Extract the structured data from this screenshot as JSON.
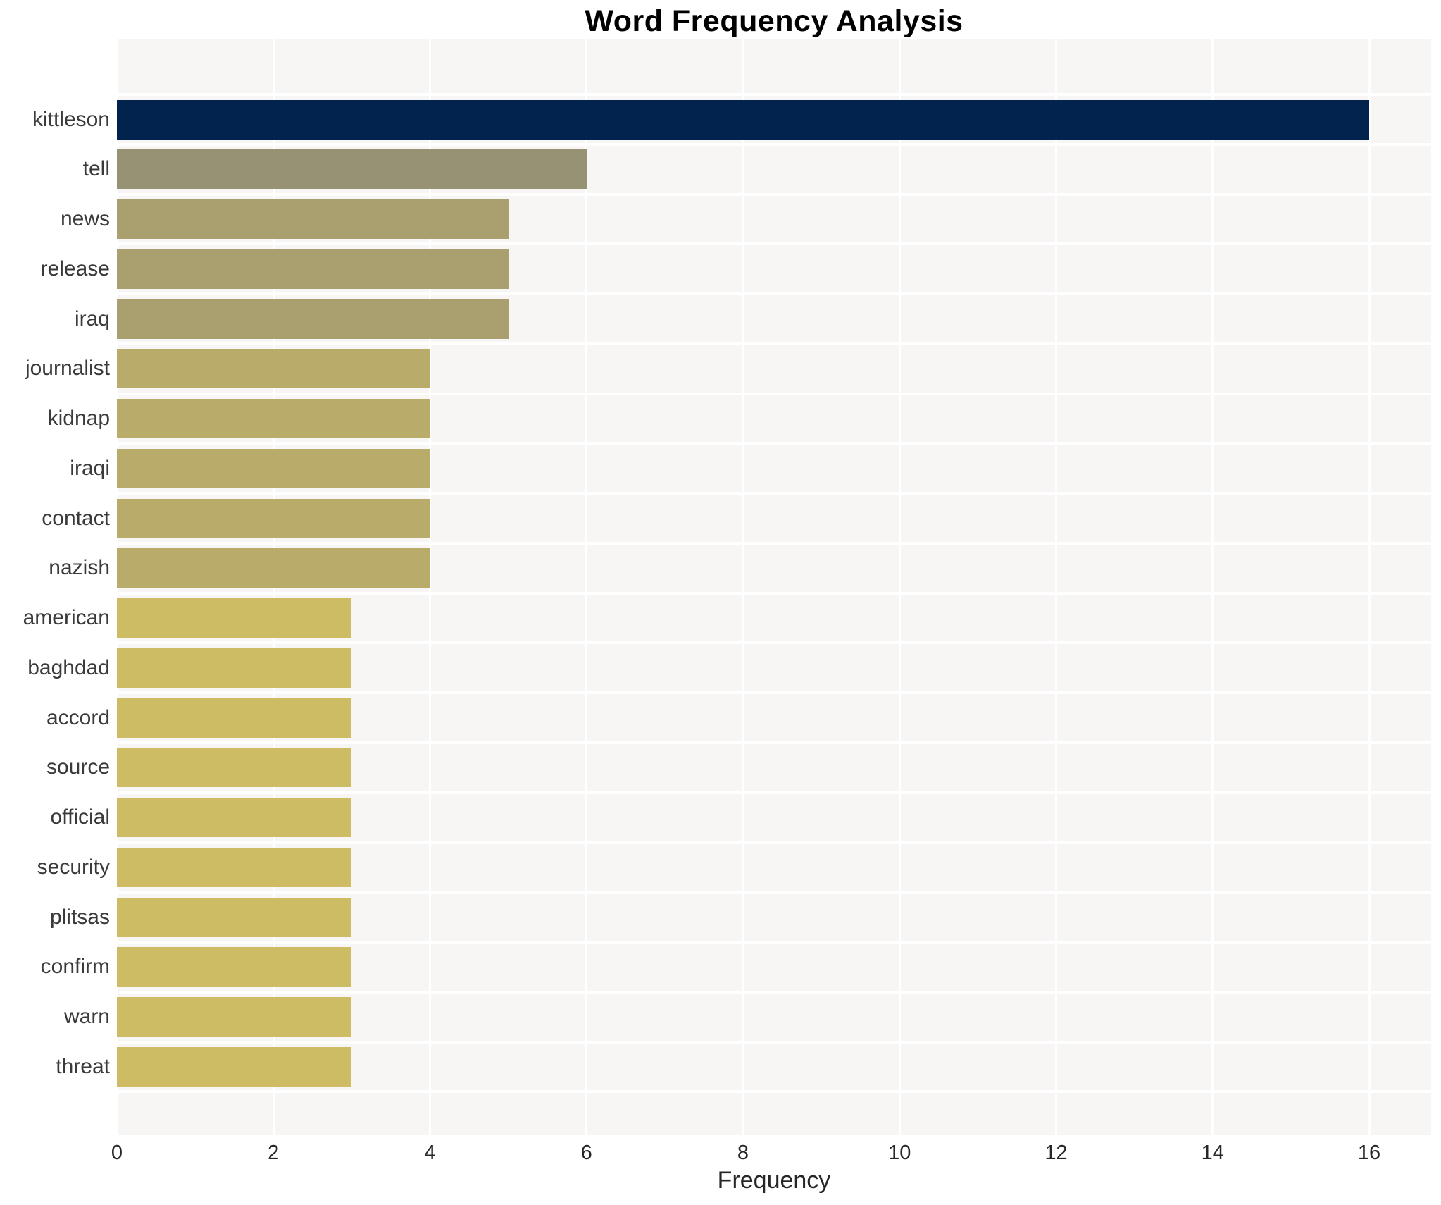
{
  "chart_data": {
    "type": "bar",
    "orientation": "horizontal",
    "title": "Word Frequency Analysis",
    "xlabel": "Frequency",
    "ylabel": "",
    "categories": [
      "kittleson",
      "tell",
      "news",
      "release",
      "iraq",
      "journalist",
      "kidnap",
      "iraqi",
      "contact",
      "nazish",
      "american",
      "baghdad",
      "accord",
      "source",
      "official",
      "security",
      "plitsas",
      "confirm",
      "warn",
      "threat"
    ],
    "values": [
      16,
      6,
      5,
      5,
      5,
      4,
      4,
      4,
      4,
      4,
      3,
      3,
      3,
      3,
      3,
      3,
      3,
      3,
      3,
      3
    ],
    "bar_colors": [
      "#02234d",
      "#989274",
      "#aaa06f",
      "#aaa06f",
      "#aaa06f",
      "#b9ac6a",
      "#b9ac6a",
      "#b9ac6a",
      "#b9ac6a",
      "#b9ac6a",
      "#cdbc63",
      "#cdbc63",
      "#cdbc63",
      "#cdbc63",
      "#cdbc63",
      "#cdbc63",
      "#cdbc63",
      "#cdbc63",
      "#cdbc63",
      "#cdbc63"
    ],
    "xlim": [
      0,
      16.8
    ],
    "xticks": [
      0,
      2,
      4,
      6,
      8,
      10,
      12,
      14,
      16
    ],
    "grid": true,
    "legend": false,
    "plot_background_color": "#f7f6f4",
    "grid_color": "#ffffff",
    "axis_label_color": "#3a3a3a",
    "tick_label_color": "#262626",
    "title_color": "#000000"
  }
}
